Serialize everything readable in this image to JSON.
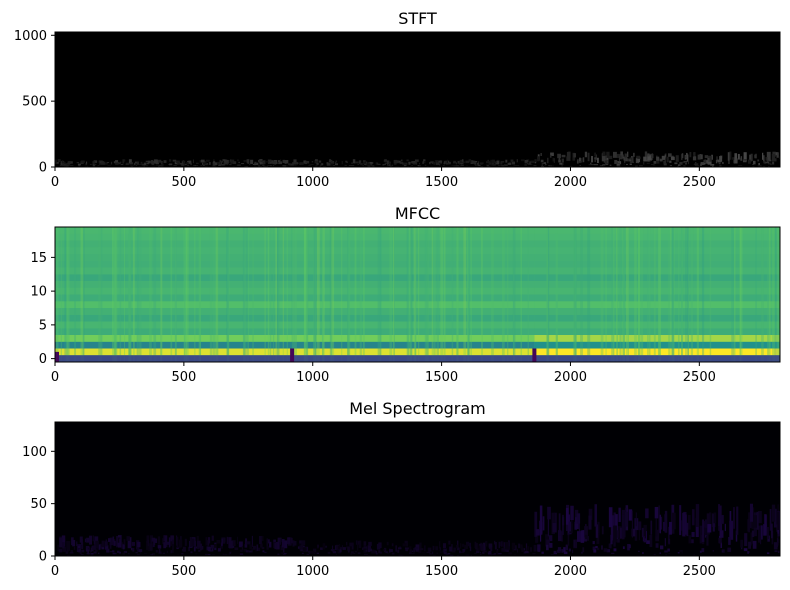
{
  "chart_data": [
    {
      "type": "heatmap",
      "title": "STFT",
      "xlim": [
        0,
        2813
      ],
      "ylim": [
        0,
        1025
      ],
      "xticks": [
        "0",
        "500",
        "1000",
        "1500",
        "2000",
        "2500"
      ],
      "yticks": [
        "0",
        "500",
        "1000"
      ],
      "colormap": "gray",
      "description_values": {
        "segment_breaks": [
          920,
          1860
        ],
        "energy_band_max_y": [
          60,
          60,
          120
        ],
        "energy_band_intensity": [
          0.2,
          0.18,
          0.28
        ]
      }
    },
    {
      "type": "heatmap",
      "title": "MFCC",
      "xlim": [
        0,
        2813
      ],
      "ylim": [
        -0.5,
        19.5
      ],
      "xticks": [
        "0",
        "500",
        "1000",
        "1500",
        "2000",
        "2500"
      ],
      "yticks": [
        "0",
        "5",
        "10",
        "15"
      ],
      "colormap": "viridis",
      "description_values": {
        "segment_breaks": [
          920,
          1860
        ],
        "coefficient_levels": [
          0.25,
          0.95,
          0.45,
          0.78,
          0.62,
          0.66,
          0.6,
          0.64,
          0.7,
          0.62,
          0.66,
          0.64,
          0.6,
          0.65,
          0.63,
          0.64,
          0.65,
          0.64,
          0.66,
          0.67
        ]
      }
    },
    {
      "type": "heatmap",
      "title": "Mel Spectrogram",
      "xlim": [
        0,
        2813
      ],
      "ylim": [
        0,
        128
      ],
      "xticks": [
        "0",
        "500",
        "1000",
        "1500",
        "2000",
        "2500"
      ],
      "yticks": [
        "0",
        "50",
        "100"
      ],
      "colormap": "magma",
      "description_values": {
        "segment_breaks": [
          920,
          1860
        ],
        "energy_band_max_y": [
          20,
          15,
          50
        ],
        "energy_band_intensity": [
          0.12,
          0.1,
          0.16
        ]
      }
    }
  ]
}
